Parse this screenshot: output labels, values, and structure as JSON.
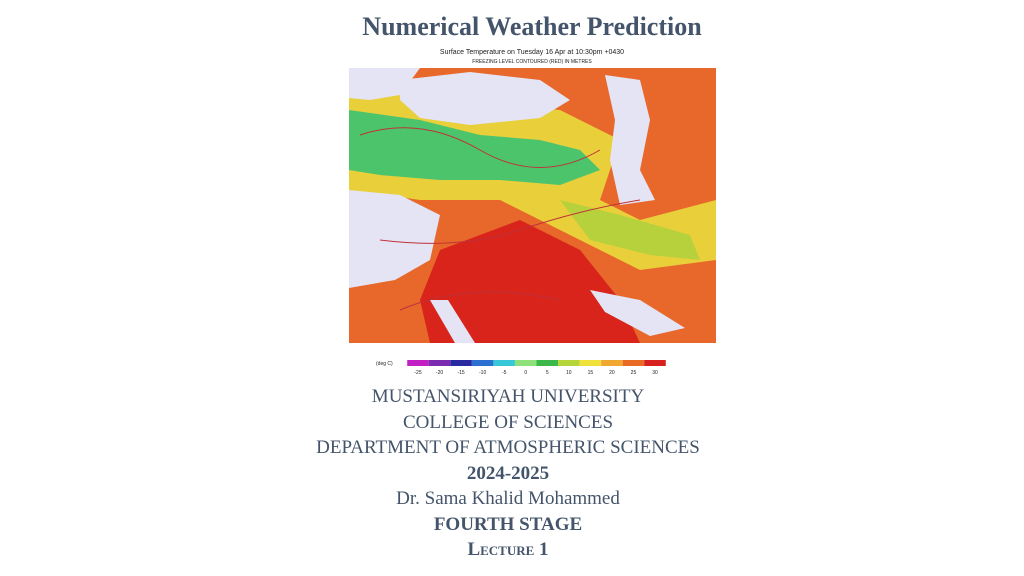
{
  "header": {
    "title": "Numerical Weather Prediction"
  },
  "map": {
    "title": "Surface Temperature on Tuesday 16 Apr at 10:30pm +0430",
    "subtitle": "FREEZING LEVEL CONTOURED (RED) IN METRES",
    "legend_unit": "(deg C)",
    "legend_ticks": [
      -25,
      -20,
      -15,
      -10,
      -5,
      0,
      5,
      10,
      15,
      20,
      25,
      30
    ]
  },
  "body": {
    "lines": [
      "MUSTANSIRIYAH UNIVERSITY",
      "COLLEGE OF SCIENCES",
      "DEPARTMENT OF ATMOSPHERIC SCIENCES",
      "2024-2025",
      "Dr. Sama Khalid Mohammed",
      "FOURTH STAGE",
      "Lecture 1"
    ]
  }
}
